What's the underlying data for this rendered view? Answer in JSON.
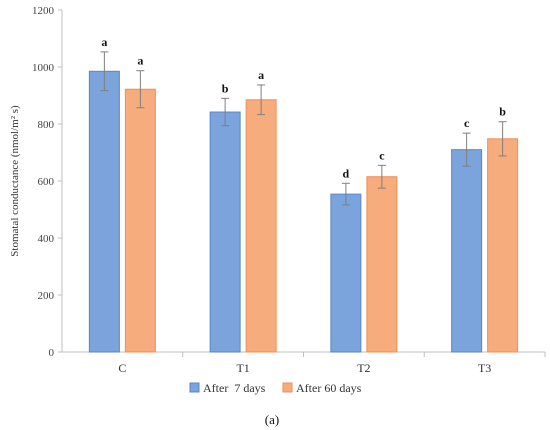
{
  "chart_data": {
    "type": "bar",
    "categories": [
      "C",
      "T1",
      "T2",
      "T3"
    ],
    "series": [
      {
        "name": "After  7 days",
        "color": "#7ba3dc",
        "edge": "#5b87c8",
        "values": [
          985,
          842,
          554,
          710
        ],
        "errors": [
          68,
          48,
          38,
          58
        ],
        "letters": [
          "a",
          "b",
          "d",
          "c"
        ]
      },
      {
        "name": "After 60 days",
        "color": "#f6ac7c",
        "edge": "#ef8f57",
        "values": [
          922,
          885,
          615,
          748
        ],
        "errors": [
          65,
          52,
          40,
          60
        ],
        "letters": [
          "a",
          "a",
          "c",
          "b"
        ]
      }
    ],
    "ylabel": "Stomatal conductance (nmol/m² s)",
    "xlabel": "",
    "ylim": [
      0,
      1200
    ],
    "yticks": [
      0,
      200,
      400,
      600,
      800,
      1000,
      1200
    ],
    "grid": false,
    "legend_position": "bottom"
  },
  "panel_label": "(a)"
}
